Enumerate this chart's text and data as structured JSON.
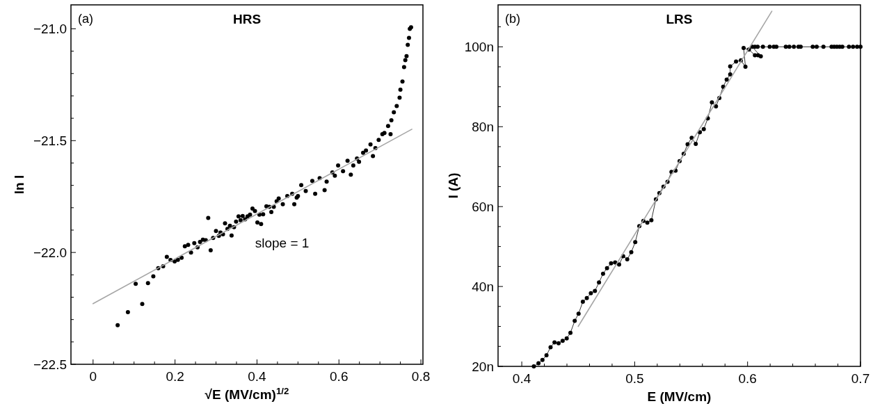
{
  "chart_data": [
    {
      "type": "scatter",
      "title": "HRS",
      "xlabel": "√E (MV/cm)$^{1/2}$",
      "ylabel": "ln I",
      "annotations": [
        "(a)",
        "slope = 1"
      ],
      "xlim": [
        -0.054,
        0.805
      ],
      "ylim": [
        -22.5,
        -20.893
      ],
      "xticks": [
        0,
        {
          "value": 0.05,
          "label": null
        },
        {
          "value": 0.1,
          "label": null
        },
        {
          "value": 0.15,
          "label": null
        },
        0.2,
        {
          "value": 0.25,
          "label": null
        },
        {
          "value": 0.3,
          "label": null
        },
        {
          "value": 0.35,
          "label": null
        },
        0.4,
        {
          "value": 0.45,
          "label": null
        },
        {
          "value": 0.5,
          "label": null
        },
        {
          "value": 0.55,
          "label": null
        },
        0.6,
        {
          "value": 0.65,
          "label": null
        },
        {
          "value": 0.7,
          "label": null
        },
        {
          "value": 0.75,
          "label": null
        },
        0.8
      ],
      "yticks": [
        {
          "value": -22.5,
          "label": "−22.5"
        },
        {
          "value": -22.4,
          "label": null
        },
        {
          "value": -22.3,
          "label": null
        },
        {
          "value": -22.2,
          "label": null
        },
        {
          "value": -22.1,
          "label": null
        },
        {
          "value": -22.0,
          "label": "−22.0"
        },
        {
          "value": -21.9,
          "label": null
        },
        {
          "value": -21.8,
          "label": null
        },
        {
          "value": -21.7,
          "label": null
        },
        {
          "value": -21.6,
          "label": null
        },
        {
          "value": -21.5,
          "label": "−21.5"
        },
        {
          "value": -21.4,
          "label": null
        },
        {
          "value": -21.3,
          "label": null
        },
        {
          "value": -21.2,
          "label": null
        },
        {
          "value": -21.1,
          "label": null
        },
        {
          "value": -21.0,
          "label": "−21.0"
        }
      ],
      "series": [
        {
          "marker": "circle",
          "color": "#000000",
          "x": [
            0.06,
            0.085,
            0.104,
            0.12,
            0.134,
            0.147,
            0.159,
            0.171,
            0.18,
            0.189,
            0.199,
            0.207,
            0.216,
            0.224,
            0.232,
            0.239,
            0.247,
            0.255,
            0.261,
            0.268,
            0.275,
            0.281,
            0.287,
            0.293,
            0.3,
            0.307,
            0.311,
            0.317,
            0.322,
            0.328,
            0.334,
            0.338,
            0.344,
            0.349,
            0.355,
            0.36,
            0.365,
            0.371,
            0.377,
            0.383,
            0.389,
            0.395,
            0.401,
            0.406,
            0.41,
            0.415,
            0.423,
            0.43,
            0.435,
            0.441,
            0.448,
            0.453,
            0.463,
            0.474,
            0.486,
            0.491,
            0.497,
            0.5,
            0.508,
            0.519,
            0.535,
            0.542,
            0.553,
            0.565,
            0.57,
            0.584,
            0.59,
            0.598,
            0.61,
            0.621,
            0.629,
            0.635,
            0.644,
            0.649,
            0.659,
            0.666,
            0.677,
            0.683,
            0.689,
            0.697,
            0.706,
            0.711,
            0.72,
            0.726,
            0.728,
            0.734,
            0.741,
            0.748,
            0.75,
            0.755,
            0.759,
            0.762,
            0.765,
            0.768,
            0.771,
            0.773,
            0.776
          ],
          "values": [
            -22.325,
            -22.267,
            -22.14,
            -22.23,
            -22.137,
            -22.107,
            -22.07,
            -22.062,
            -22.02,
            -22.034,
            -22.04,
            -22.033,
            -22.024,
            -21.972,
            -21.966,
            -22.0,
            -21.958,
            -21.977,
            -21.953,
            -21.943,
            -21.945,
            -21.846,
            -21.99,
            -21.935,
            -21.904,
            -21.926,
            -21.911,
            -21.919,
            -21.87,
            -21.895,
            -21.881,
            -21.924,
            -21.887,
            -21.862,
            -21.839,
            -21.856,
            -21.837,
            -21.852,
            -21.839,
            -21.831,
            -21.804,
            -21.815,
            -21.866,
            -21.831,
            -21.873,
            -21.829,
            -21.794,
            -21.796,
            -21.819,
            -21.796,
            -21.771,
            -21.759,
            -21.784,
            -21.748,
            -21.738,
            -21.784,
            -21.755,
            -21.748,
            -21.699,
            -21.725,
            -21.68,
            -21.738,
            -21.668,
            -21.721,
            -21.683,
            -21.642,
            -21.657,
            -21.611,
            -21.637,
            -21.59,
            -21.652,
            -21.611,
            -21.58,
            -21.595,
            -21.554,
            -21.544,
            -21.517,
            -21.569,
            -21.533,
            -21.497,
            -21.471,
            -21.466,
            -21.435,
            -21.471,
            -21.409,
            -21.373,
            -21.345,
            -21.308,
            -21.272,
            -21.236,
            -21.171,
            -21.14,
            -21.122,
            -21.072,
            -21.041,
            -21.0,
            -20.993
          ]
        },
        {
          "type": "line",
          "marker": "none",
          "color": "#a6a6a6",
          "x": [
            0,
            0.778
          ],
          "values": [
            -22.229,
            -21.449
          ]
        }
      ]
    },
    {
      "type": "line",
      "title": "LRS",
      "xlabel": "E (MV/cm)",
      "ylabel": "I (A)",
      "annotations": [
        "(b)"
      ],
      "xlim": [
        0.379,
        0.7
      ],
      "ylim": [
        20,
        110.5
      ],
      "xticks": [
        0.4,
        {
          "value": 0.42,
          "label": null
        },
        {
          "value": 0.44,
          "label": null
        },
        {
          "value": 0.46,
          "label": null
        },
        {
          "value": 0.48,
          "label": null
        },
        0.5,
        {
          "value": 0.52,
          "label": null
        },
        {
          "value": 0.54,
          "label": null
        },
        {
          "value": 0.56,
          "label": null
        },
        {
          "value": 0.58,
          "label": null
        },
        0.6,
        {
          "value": 0.62,
          "label": null
        },
        {
          "value": 0.64,
          "label": null
        },
        {
          "value": 0.66,
          "label": null
        },
        {
          "value": 0.68,
          "label": null
        },
        0.7
      ],
      "yticks": [
        {
          "value": 20,
          "label": "20n"
        },
        {
          "value": 25,
          "label": null
        },
        {
          "value": 30,
          "label": null
        },
        {
          "value": 35,
          "label": null
        },
        {
          "value": 40,
          "label": "40n"
        },
        {
          "value": 45,
          "label": null
        },
        {
          "value": 50,
          "label": null
        },
        {
          "value": 55,
          "label": null
        },
        {
          "value": 60,
          "label": "60n"
        },
        {
          "value": 65,
          "label": null
        },
        {
          "value": 70,
          "label": null
        },
        {
          "value": 75,
          "label": null
        },
        {
          "value": 80,
          "label": "80n"
        },
        {
          "value": 85,
          "label": null
        },
        {
          "value": 90,
          "label": null
        },
        {
          "value": 95,
          "label": null
        },
        {
          "value": 100,
          "label": "100n"
        },
        {
          "value": 105,
          "label": null
        }
      ],
      "series": [
        {
          "marker": "circle",
          "color": "#000000",
          "x": [
            0.4107,
            0.4148,
            0.4183,
            0.4219,
            0.4255,
            0.429,
            0.4326,
            0.4362,
            0.4398,
            0.4431,
            0.4469,
            0.4503,
            0.4541,
            0.4576,
            0.4612,
            0.4648,
            0.4684,
            0.472,
            0.4755,
            0.4791,
            0.4827,
            0.4862,
            0.4898,
            0.4934,
            0.497,
            0.5005,
            0.5041,
            0.5077,
            0.5112,
            0.5148,
            0.5188,
            0.5219,
            0.5255,
            0.5291,
            0.5326,
            0.5362,
            0.5398,
            0.5434,
            0.5469,
            0.5505,
            0.5541,
            0.5577,
            0.5612,
            0.5648,
            0.5684,
            0.572,
            0.575,
            0.5784,
            0.5815,
            0.5846,
            0.5846,
            0.5898,
            0.5941,
            0.5981,
            0.5965,
            0.6012,
            0.6065,
            0.6093,
            0.6117,
            0.6041,
            0.6065,
            0.6089,
            0.6136,
            0.6196,
            0.6232,
            0.6255,
            0.6339,
            0.637,
            0.641,
            0.6451,
            0.647,
            0.6577,
            0.6612,
            0.6672,
            0.6744,
            0.6767,
            0.6791,
            0.6815,
            0.6839,
            0.6898,
            0.6934,
            0.697,
            0.7
          ],
          "values": [
            20.0,
            20.8,
            21.6,
            22.8,
            24.8,
            26.0,
            25.8,
            26.4,
            27.0,
            28.4,
            31.4,
            33.2,
            36.2,
            37.1,
            38.3,
            38.9,
            41.0,
            43.2,
            44.6,
            45.8,
            46.0,
            45.5,
            47.6,
            46.8,
            48.6,
            51.1,
            55.1,
            56.4,
            56.0,
            56.6,
            61.8,
            63.4,
            65.0,
            66.2,
            68.7,
            69.0,
            71.4,
            73.2,
            75.6,
            77.2,
            75.7,
            78.6,
            79.4,
            82.1,
            86.1,
            85.1,
            87.2,
            90.0,
            91.8,
            93.1,
            95.1,
            96.3,
            96.6,
            95.0,
            99.7,
            99.3,
            97.9,
            97.9,
            97.6,
            100,
            100,
            100,
            100,
            100,
            100,
            100,
            100,
            100,
            100,
            100,
            100,
            100,
            100,
            100,
            100,
            100,
            100,
            100,
            100,
            100,
            100,
            100,
            100
          ]
        },
        {
          "type": "line",
          "marker": "none",
          "color": "#a6a6a6",
          "x": [
            0.45,
            0.6215
          ],
          "values": [
            30.0,
            108.9
          ]
        }
      ]
    }
  ]
}
